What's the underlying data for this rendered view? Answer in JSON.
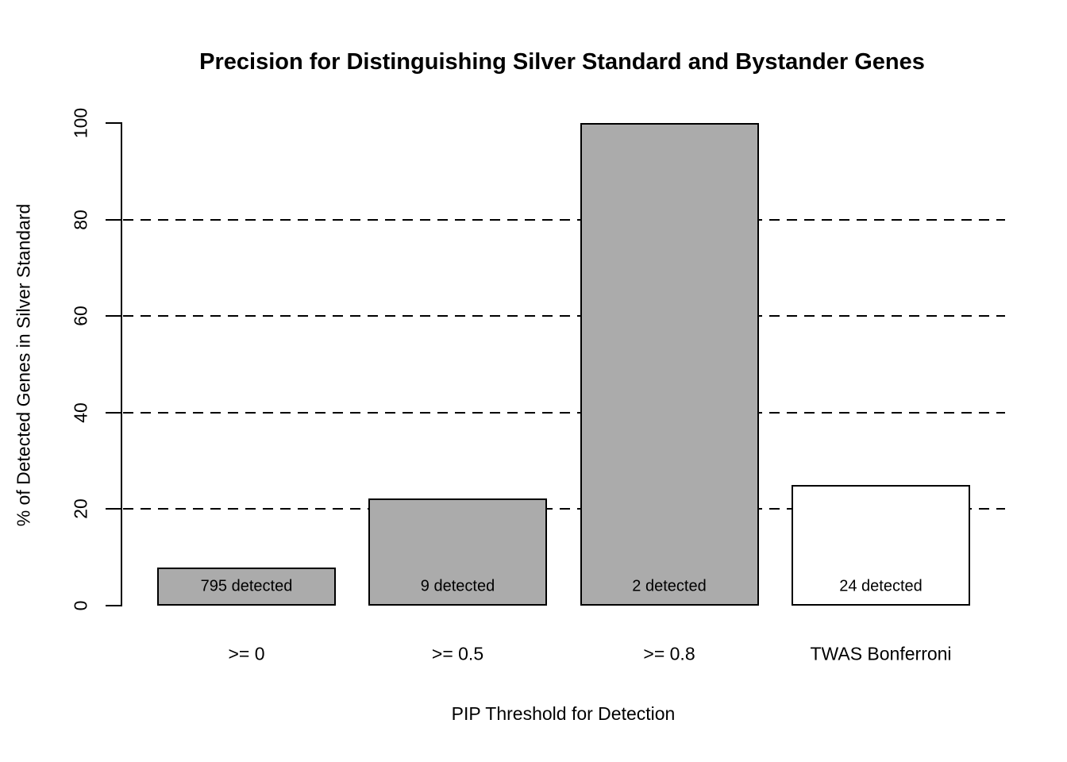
{
  "chart_data": {
    "type": "bar",
    "title": "Precision for Distinguishing Silver Standard and Bystander Genes",
    "xlabel": "PIP Threshold for Detection",
    "ylabel": "% of Detected Genes in Silver Standard",
    "categories": [
      ">= 0",
      ">= 0.5",
      ">= 0.8",
      "TWAS Bonferroni"
    ],
    "values": [
      7.9,
      22.2,
      100,
      25
    ],
    "bar_labels": [
      "795 detected",
      "9 detected",
      "2 detected",
      "24 detected"
    ],
    "bar_fill_colors": [
      "#ababab",
      "#ababab",
      "#ababab",
      "#ffffff"
    ],
    "bar_border_color": "#000000",
    "ylim": [
      0,
      100
    ],
    "yticks": [
      0,
      20,
      40,
      60,
      80,
      100
    ],
    "gridlines": [
      20,
      40,
      60,
      80
    ],
    "grid_style": "dashed",
    "legend_position": "none",
    "text_color": "#000000",
    "background_color": "#ffffff"
  }
}
